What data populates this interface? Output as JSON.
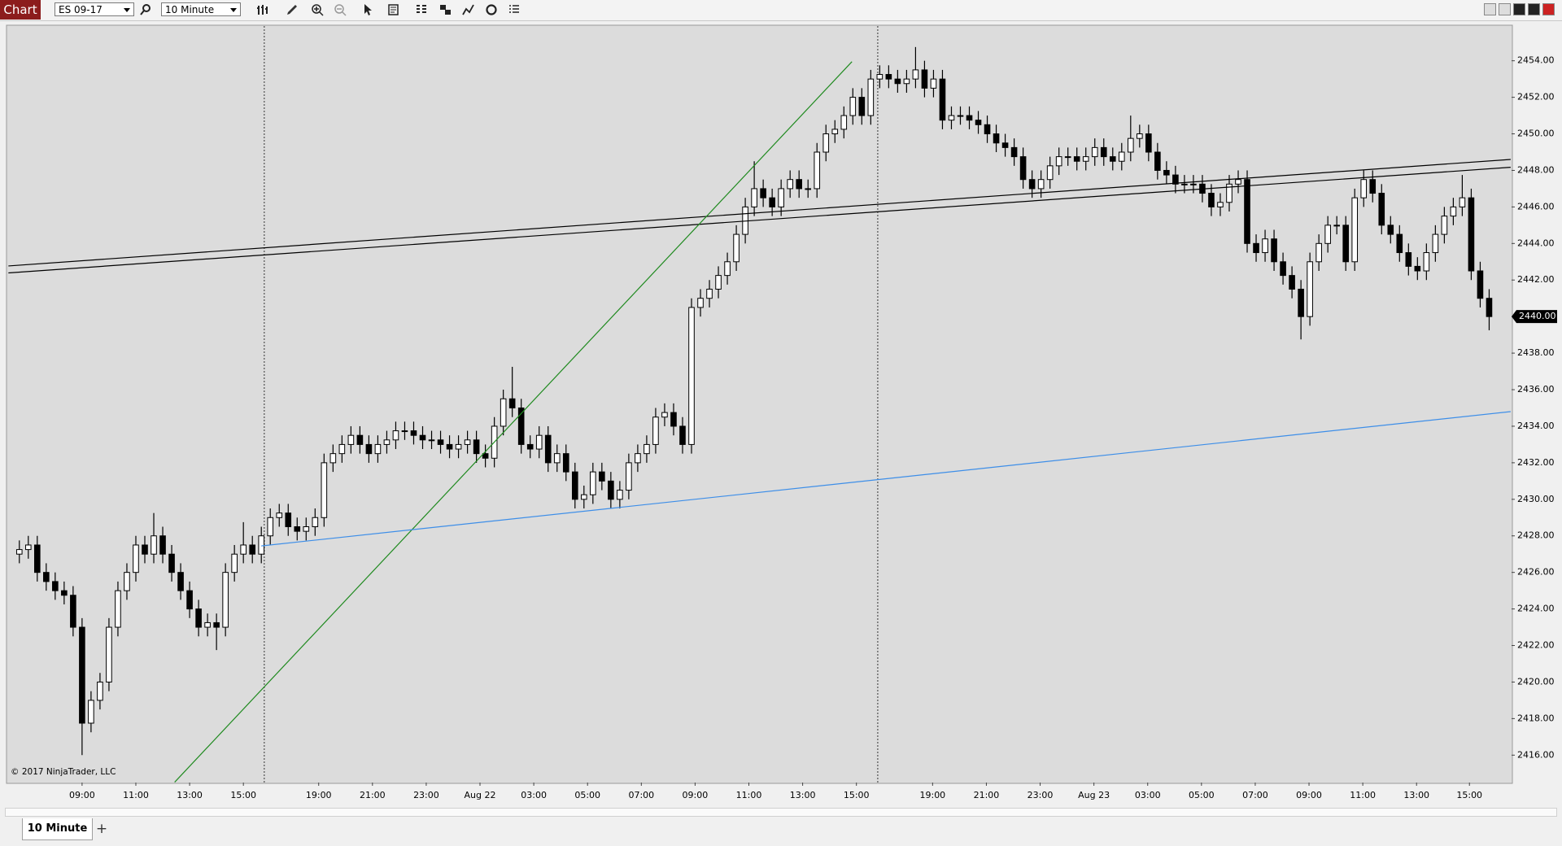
{
  "toolbar": {
    "app": "Chart",
    "instrument": "ES 09-17",
    "interval": "10 Minute"
  },
  "tabs": {
    "items": [
      "10 Minute"
    ],
    "add": "+"
  },
  "chart_data": {
    "type": "candlestick",
    "copyright": "© 2017 NinjaTrader, LLC",
    "up_color": "#ffffff",
    "down_color": "#000000",
    "wick_color": "#000000",
    "xlim": [
      -1.25,
      166.5
    ],
    "ylim": [
      2414.5,
      2455.9
    ],
    "xticks": [
      {
        "value": 7,
        "label": "09:00"
      },
      {
        "value": 13,
        "label": "11:00"
      },
      {
        "value": 19,
        "label": "13:00"
      },
      {
        "value": 25,
        "label": "15:00"
      },
      {
        "value": 33.4,
        "label": "19:00"
      },
      {
        "value": 39.4,
        "label": "21:00"
      },
      {
        "value": 45.4,
        "label": "23:00"
      },
      {
        "value": 51.4,
        "label": "Aug 22"
      },
      {
        "value": 57.4,
        "label": "03:00"
      },
      {
        "value": 63.4,
        "label": "05:00"
      },
      {
        "value": 69.4,
        "label": "07:00"
      },
      {
        "value": 75.4,
        "label": "09:00"
      },
      {
        "value": 81.4,
        "label": "11:00"
      },
      {
        "value": 87.4,
        "label": "13:00"
      },
      {
        "value": 93.4,
        "label": "15:00"
      },
      {
        "value": 101.9,
        "label": "19:00"
      },
      {
        "value": 107.9,
        "label": "21:00"
      },
      {
        "value": 113.9,
        "label": "23:00"
      },
      {
        "value": 119.9,
        "label": "Aug 23"
      },
      {
        "value": 125.9,
        "label": "03:00"
      },
      {
        "value": 131.9,
        "label": "05:00"
      },
      {
        "value": 137.9,
        "label": "07:00"
      },
      {
        "value": 143.9,
        "label": "09:00"
      },
      {
        "value": 149.9,
        "label": "11:00"
      },
      {
        "value": 155.9,
        "label": "13:00"
      },
      {
        "value": 161.8,
        "label": "15:00"
      }
    ],
    "yticks": [
      {
        "value": 2416,
        "label": "2416.00"
      },
      {
        "value": 2418,
        "label": "2418.00"
      },
      {
        "value": 2420,
        "label": "2420.00"
      },
      {
        "value": 2422,
        "label": "2422.00"
      },
      {
        "value": 2424,
        "label": "2424.00"
      },
      {
        "value": 2426,
        "label": "2426.00"
      },
      {
        "value": 2428,
        "label": "2428.00"
      },
      {
        "value": 2430,
        "label": "2430.00"
      },
      {
        "value": 2432,
        "label": "2432.00"
      },
      {
        "value": 2434,
        "label": "2434.00"
      },
      {
        "value": 2436,
        "label": "2436.00"
      },
      {
        "value": 2438,
        "label": "2438.00"
      },
      {
        "value": 2440,
        "label": "2440.00"
      },
      {
        "value": 2442,
        "label": "2442.00"
      },
      {
        "value": 2444,
        "label": "2444.00"
      },
      {
        "value": 2446,
        "label": "2446.00"
      },
      {
        "value": 2448,
        "label": "2448.00"
      },
      {
        "value": 2450,
        "label": "2450.00"
      },
      {
        "value": 2452,
        "label": "2452.00"
      },
      {
        "value": 2454,
        "label": "2454.00"
      }
    ],
    "last_price": {
      "value": 2440,
      "label": "2440.00"
    },
    "open": [
      2427.0,
      2427.25,
      2427.5,
      2426.0,
      2425.5,
      2425.0,
      2424.75,
      2423.0,
      2417.75,
      2419.0,
      2420.0,
      2423.0,
      2425.0,
      2426.0,
      2427.5,
      2427.0,
      2428.0,
      2427.0,
      2426.0,
      2425.0,
      2424.0,
      2423.0,
      2423.25,
      2423.0,
      2426.0,
      2427.0,
      2427.5,
      2427.0,
      2428.0,
      2429.0,
      2429.25,
      2428.5,
      2428.25,
      2428.5,
      2429.0,
      2432.0,
      2432.5,
      2433.0,
      2433.5,
      2433.0,
      2432.5,
      2433.0,
      2433.25,
      2433.75,
      2433.75,
      2433.5,
      2433.25,
      2433.25,
      2433.0,
      2432.75,
      2433.0,
      2433.25,
      2432.5,
      2432.25,
      2434.0,
      2435.5,
      2435.0,
      2433.0,
      2432.75,
      2433.5,
      2432.0,
      2432.5,
      2431.5,
      2430.0,
      2430.25,
      2431.5,
      2431.0,
      2430.0,
      2430.5,
      2432.0,
      2432.5,
      2433.0,
      2434.5,
      2434.75,
      2434.0,
      2433.0,
      2440.5,
      2441.0,
      2441.5,
      2442.25,
      2443.0,
      2444.5,
      2446.0,
      2447.0,
      2446.5,
      2446.0,
      2447.0,
      2447.5,
      2447.0,
      2447.0,
      2449.0,
      2450.0,
      2450.25,
      2451.0,
      2452.0,
      2451.0,
      2453.0,
      2453.25,
      2453.0,
      2452.75,
      2453.0,
      2453.5,
      2452.5,
      2453.0,
      2450.75,
      2451.0,
      2451.0,
      2450.75,
      2450.5,
      2450.0,
      2449.5,
      2449.25,
      2448.75,
      2447.5,
      2447.0,
      2447.5,
      2448.25,
      2448.75,
      2448.75,
      2448.5,
      2448.75,
      2449.25,
      2448.75,
      2448.5,
      2449.0,
      2449.75,
      2450.0,
      2449.0,
      2448.0,
      2447.75,
      2447.25,
      2447.25,
      2447.25,
      2446.75,
      2446.0,
      2446.25,
      2447.25,
      2447.5,
      2444.0,
      2443.5,
      2444.25,
      2443.0,
      2442.25,
      2441.5,
      2440.0,
      2443.0,
      2444.0,
      2445.0,
      2445.0,
      2443.0,
      2446.5,
      2447.5,
      2446.75,
      2445.0,
      2444.5,
      2443.5,
      2442.75,
      2442.5,
      2443.5,
      2444.5,
      2445.5,
      2446.0,
      2446.5,
      2442.5,
      2441.0
    ],
    "high": [
      2427.75,
      2428.0,
      2428.0,
      2426.5,
      2426.0,
      2425.5,
      2425.25,
      2423.5,
      2419.5,
      2420.5,
      2423.5,
      2425.5,
      2426.5,
      2428.0,
      2428.0,
      2429.25,
      2428.5,
      2427.5,
      2426.5,
      2425.5,
      2424.5,
      2423.75,
      2423.75,
      2426.5,
      2427.5,
      2428.75,
      2428.0,
      2428.5,
      2429.5,
      2429.75,
      2429.75,
      2429.0,
      2429.0,
      2429.5,
      2432.5,
      2433.0,
      2433.5,
      2434.0,
      2434.0,
      2433.5,
      2433.5,
      2433.75,
      2434.25,
      2434.25,
      2434.25,
      2434.0,
      2433.75,
      2433.75,
      2433.5,
      2433.5,
      2433.75,
      2433.75,
      2433.0,
      2434.5,
      2436.0,
      2437.25,
      2435.5,
      2433.5,
      2434.0,
      2434.0,
      2433.0,
      2433.0,
      2432.0,
      2430.75,
      2432.0,
      2432.0,
      2431.5,
      2431.0,
      2432.5,
      2433.0,
      2433.5,
      2435.0,
      2435.25,
      2435.25,
      2434.5,
      2441.0,
      2441.5,
      2442.0,
      2442.75,
      2443.5,
      2445.0,
      2446.5,
      2448.5,
      2447.5,
      2447.0,
      2447.5,
      2448.0,
      2448.0,
      2447.5,
      2449.5,
      2450.5,
      2450.75,
      2451.5,
      2452.5,
      2452.5,
      2453.5,
      2453.75,
      2453.75,
      2453.5,
      2453.5,
      2454.75,
      2454.0,
      2453.5,
      2453.5,
      2451.5,
      2451.5,
      2451.5,
      2451.25,
      2451.0,
      2450.5,
      2450.0,
      2449.75,
      2449.25,
      2448.0,
      2448.0,
      2448.75,
      2449.25,
      2449.25,
      2449.25,
      2449.25,
      2449.75,
      2449.75,
      2449.25,
      2449.5,
      2451.0,
      2450.5,
      2450.5,
      2449.5,
      2448.5,
      2448.25,
      2447.75,
      2447.75,
      2447.75,
      2447.25,
      2446.75,
      2447.75,
      2448.0,
      2448.0,
      2444.5,
      2444.75,
      2444.75,
      2443.5,
      2442.75,
      2442.0,
      2443.5,
      2444.5,
      2445.5,
      2445.5,
      2445.5,
      2447.0,
      2448.0,
      2448.0,
      2447.25,
      2445.5,
      2445.0,
      2444.0,
      2443.25,
      2444.0,
      2445.0,
      2446.0,
      2446.5,
      2447.75,
      2447.0,
      2443.0,
      2441.5
    ],
    "low": [
      2426.5,
      2426.75,
      2425.5,
      2425.0,
      2424.5,
      2424.25,
      2422.5,
      2416.0,
      2417.25,
      2418.5,
      2419.5,
      2422.5,
      2424.5,
      2425.5,
      2426.5,
      2426.5,
      2426.5,
      2425.5,
      2424.5,
      2423.5,
      2422.5,
      2422.5,
      2421.75,
      2422.5,
      2425.5,
      2426.5,
      2426.5,
      2426.5,
      2427.5,
      2428.5,
      2428.0,
      2427.75,
      2427.75,
      2428.0,
      2428.5,
      2431.5,
      2432.0,
      2432.5,
      2432.5,
      2432.0,
      2432.0,
      2432.5,
      2432.75,
      2433.25,
      2433.0,
      2432.75,
      2432.75,
      2432.5,
      2432.25,
      2432.25,
      2432.5,
      2432.0,
      2431.75,
      2431.75,
      2433.5,
      2434.5,
      2432.5,
      2432.25,
      2432.25,
      2431.5,
      2431.5,
      2431.0,
      2429.5,
      2429.5,
      2429.75,
      2430.5,
      2429.5,
      2429.5,
      2430.0,
      2431.5,
      2432.0,
      2432.5,
      2434.0,
      2433.5,
      2432.5,
      2432.5,
      2440.0,
      2440.5,
      2441.0,
      2441.75,
      2442.5,
      2444.0,
      2445.5,
      2446.0,
      2445.5,
      2445.5,
      2446.5,
      2446.5,
      2446.5,
      2446.5,
      2448.5,
      2449.5,
      2449.75,
      2450.5,
      2450.5,
      2450.5,
      2452.5,
      2452.5,
      2452.25,
      2452.25,
      2452.5,
      2452.0,
      2452.0,
      2450.25,
      2450.25,
      2450.5,
      2450.25,
      2450.0,
      2449.5,
      2449.0,
      2448.75,
      2448.25,
      2447.0,
      2446.5,
      2446.5,
      2447.0,
      2447.75,
      2448.25,
      2448.0,
      2448.0,
      2448.25,
      2448.25,
      2448.0,
      2448.0,
      2448.5,
      2449.25,
      2448.5,
      2447.5,
      2447.25,
      2446.75,
      2446.75,
      2446.75,
      2446.25,
      2445.5,
      2445.5,
      2445.75,
      2446.75,
      2443.5,
      2443.0,
      2443.0,
      2442.5,
      2441.75,
      2441.0,
      2438.75,
      2439.5,
      2442.5,
      2443.5,
      2444.5,
      2442.5,
      2442.5,
      2446.0,
      2446.25,
      2444.5,
      2444.0,
      2443.0,
      2442.25,
      2442.0,
      2442.0,
      2443.0,
      2444.0,
      2445.0,
      2445.5,
      2442.0,
      2440.5,
      2439.25
    ],
    "close": [
      2427.25,
      2427.5,
      2426.0,
      2425.5,
      2425.0,
      2424.75,
      2423.0,
      2417.75,
      2419.0,
      2420.0,
      2423.0,
      2425.0,
      2426.0,
      2427.5,
      2427.0,
      2428.0,
      2427.0,
      2426.0,
      2425.0,
      2424.0,
      2423.0,
      2423.25,
      2423.0,
      2426.0,
      2427.0,
      2427.5,
      2427.0,
      2428.0,
      2429.0,
      2429.25,
      2428.5,
      2428.25,
      2428.5,
      2429.0,
      2432.0,
      2432.5,
      2433.0,
      2433.5,
      2433.0,
      2432.5,
      2433.0,
      2433.25,
      2433.75,
      2433.75,
      2433.5,
      2433.25,
      2433.25,
      2433.0,
      2432.75,
      2433.0,
      2433.25,
      2432.5,
      2432.25,
      2434.0,
      2435.5,
      2435.0,
      2433.0,
      2432.75,
      2433.5,
      2432.0,
      2432.5,
      2431.5,
      2430.0,
      2430.25,
      2431.5,
      2431.0,
      2430.0,
      2430.5,
      2432.0,
      2432.5,
      2433.0,
      2434.5,
      2434.75,
      2434.0,
      2433.0,
      2440.5,
      2441.0,
      2441.5,
      2442.25,
      2443.0,
      2444.5,
      2446.0,
      2447.0,
      2446.5,
      2446.0,
      2447.0,
      2447.5,
      2447.0,
      2447.0,
      2449.0,
      2450.0,
      2450.25,
      2451.0,
      2452.0,
      2451.0,
      2453.0,
      2453.25,
      2453.0,
      2452.75,
      2453.0,
      2453.5,
      2452.5,
      2453.0,
      2450.75,
      2451.0,
      2451.0,
      2450.75,
      2450.5,
      2450.0,
      2449.5,
      2449.25,
      2448.75,
      2447.5,
      2447.0,
      2447.5,
      2448.25,
      2448.75,
      2448.75,
      2448.5,
      2448.75,
      2449.25,
      2448.75,
      2448.5,
      2449.0,
      2449.75,
      2450.0,
      2449.0,
      2448.0,
      2447.75,
      2447.25,
      2447.25,
      2447.25,
      2446.75,
      2446.0,
      2446.25,
      2447.25,
      2447.5,
      2444.0,
      2443.5,
      2444.25,
      2443.0,
      2442.25,
      2441.5,
      2440.0,
      2443.0,
      2444.0,
      2445.0,
      2445.0,
      2443.0,
      2446.5,
      2447.5,
      2446.75,
      2445.0,
      2444.5,
      2443.5,
      2442.75,
      2442.5,
      2443.5,
      2444.5,
      2445.5,
      2446.0,
      2446.5,
      2442.5,
      2441.0,
      2440.0
    ],
    "trend_lines": [
      {
        "color": "#000000",
        "x": [
          -1.22,
          166.4
        ],
        "y": [
          2442.77,
          2448.6
        ]
      },
      {
        "color": "#000000",
        "x": [
          -1.22,
          166.4
        ],
        "y": [
          2442.39,
          2448.17
        ]
      },
      {
        "color": "#1f8a1f",
        "x": [
          17.33,
          92.9
        ],
        "y": [
          2414.52,
          2453.95
        ]
      },
      {
        "color": "#3d8ee8",
        "x": [
          27,
          166.4
        ],
        "y": [
          2427.45,
          2434.8
        ]
      }
    ],
    "vlines": [
      27.33,
      95.78
    ]
  }
}
